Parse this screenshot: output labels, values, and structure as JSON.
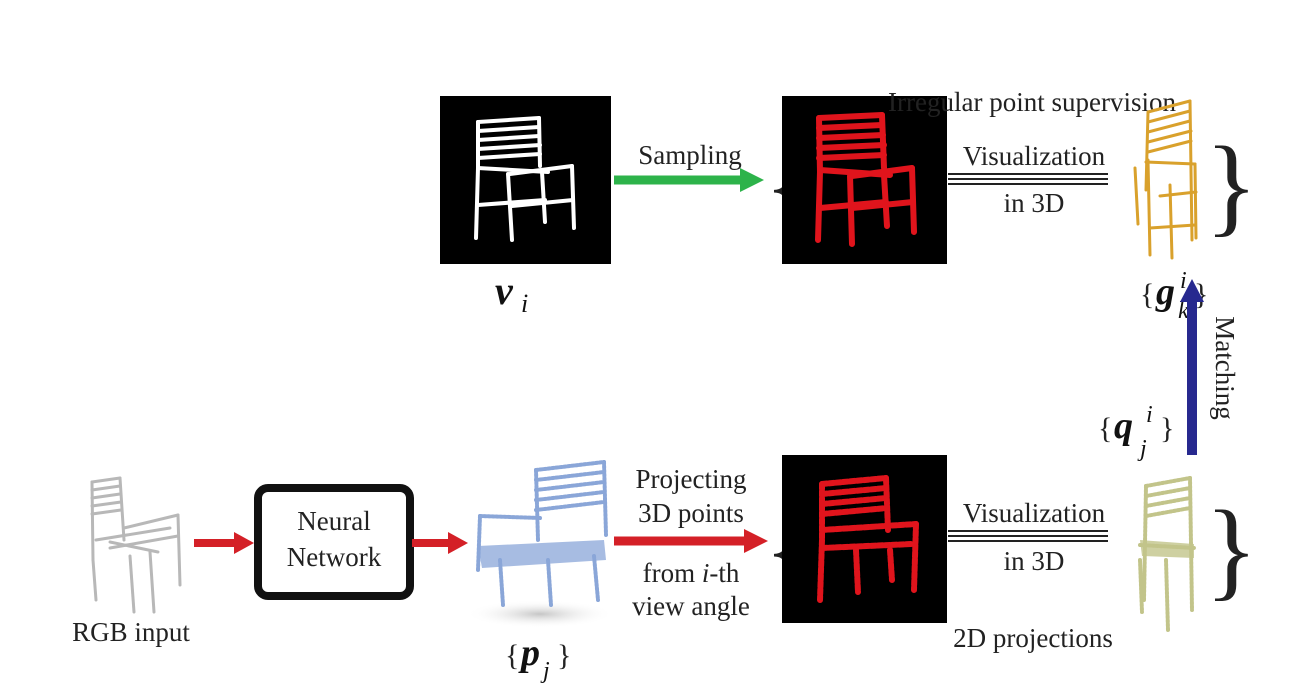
{
  "labels": {
    "irregular_point_supervision": "Irregular point supervision",
    "sampling": "Sampling",
    "visualization_top": "Visualization",
    "in_3d_top": "in 3D",
    "visualization_bottom": "Visualization",
    "in_3d_bottom": "in 3D",
    "projecting_line1": "Projecting",
    "projecting_line2": "3D points",
    "projecting_line3_pre": "from ",
    "projecting_line3_i": "i",
    "projecting_line3_post": "-th",
    "projecting_line4": "view angle",
    "matching": "Matching",
    "neural_network_line1": "Neural",
    "neural_network_line2": "Network",
    "rgb_input": "RGB input",
    "projections_2d": "2D projections"
  },
  "symbols": {
    "v": "v",
    "v_sub": "i",
    "g": "g",
    "g_sup": "i",
    "g_sub": "k",
    "q": "q",
    "q_sup": "i",
    "q_sub": "j",
    "p": "p",
    "p_sub": "j",
    "brace_open": "{",
    "brace_close": "}"
  },
  "colors": {
    "sampling_arrow": "#2db34a",
    "red_arrow": "#d42027",
    "matching_arrow": "#27298f",
    "silhouette_white": "#ffffff",
    "red_points": "#e0141c",
    "gold_points": "#d9a12c",
    "blue_points": "#8aa6d8",
    "olive_points": "#c2c48a",
    "gray_input": "#b8b8b8"
  }
}
